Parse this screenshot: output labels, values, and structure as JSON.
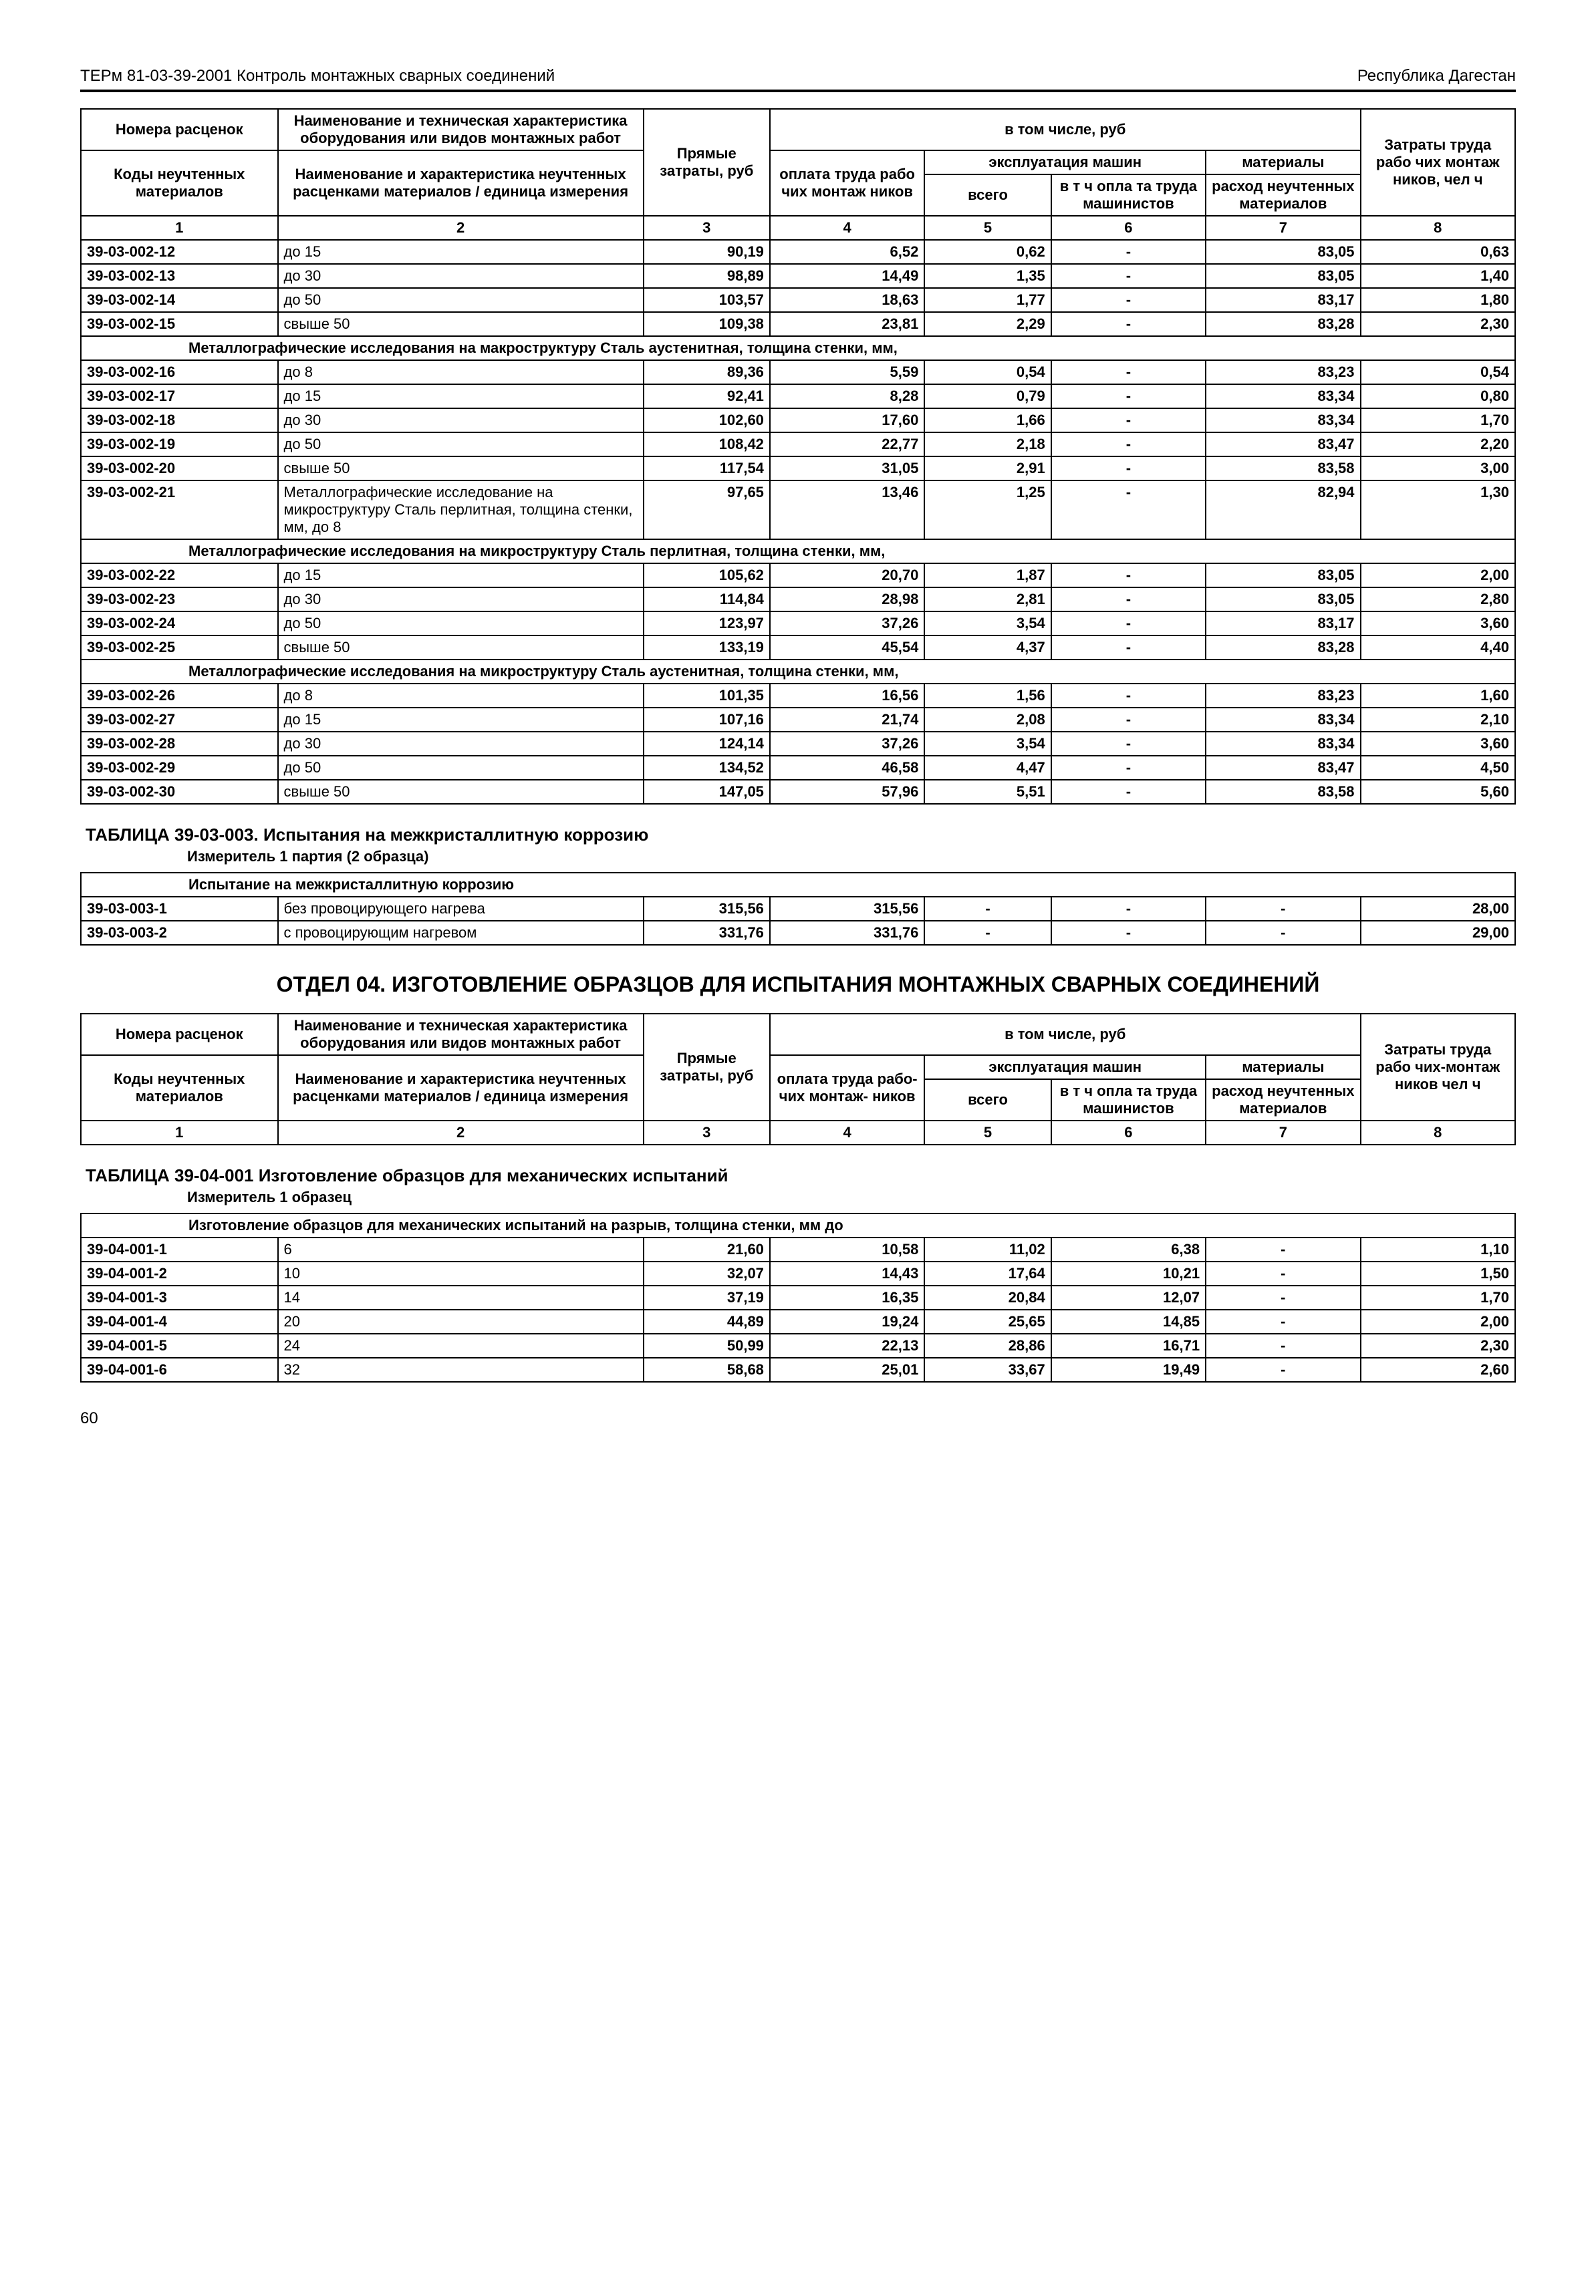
{
  "header": {
    "left": "ТЕРм 81-03-39-2001 Контроль монтажных сварных соединений",
    "right": "Республика Дагестан"
  },
  "main_header": {
    "r1c1": "Номера расценок",
    "r1c2": "Наименование и техническая характеристика оборудования или видов монтажных работ",
    "r1c3": "Прямые затраты, руб",
    "r1c4_span": "в том числе, руб",
    "r1c8": "Затраты труда рабо чих монтаж ников, чел ч",
    "r2c4": "оплата труда рабо чих монтаж ников",
    "r2c5_span": "эксплуатация машин",
    "r2c7": "материалы",
    "r3c1": "Коды неучтенных материалов",
    "r3c2": "Наименование и характеристика неучтенных расценками материалов / единица измерения",
    "r3c5": "всего",
    "r3c6": "в т ч  опла та труда машинистов",
    "r3c7": "расход неучтенных материалов",
    "colnums": [
      "1",
      "2",
      "3",
      "4",
      "5",
      "6",
      "7",
      "8"
    ]
  },
  "rows_a": [
    {
      "code": "39-03-002-12",
      "name": "до 15",
      "v": [
        "90,19",
        "6,52",
        "0,62",
        "-",
        "83,05",
        "0,63"
      ]
    },
    {
      "code": "39-03-002-13",
      "name": "до 30",
      "v": [
        "98,89",
        "14,49",
        "1,35",
        "-",
        "83,05",
        "1,40"
      ]
    },
    {
      "code": "39-03-002-14",
      "name": "до 50",
      "v": [
        "103,57",
        "18,63",
        "1,77",
        "-",
        "83,17",
        "1,80"
      ]
    },
    {
      "code": "39-03-002-15",
      "name": "свыше 50",
      "v": [
        "109,38",
        "23,81",
        "2,29",
        "-",
        "83,28",
        "2,30"
      ]
    }
  ],
  "sec_b": "Металлографические исследования на макроструктуру  Сталь аустенитная, толщина стенки, мм,",
  "rows_b": [
    {
      "code": "39-03-002-16",
      "name": "до 8",
      "v": [
        "89,36",
        "5,59",
        "0,54",
        "-",
        "83,23",
        "0,54"
      ]
    },
    {
      "code": "39-03-002-17",
      "name": "до 15",
      "v": [
        "92,41",
        "8,28",
        "0,79",
        "-",
        "83,34",
        "0,80"
      ]
    },
    {
      "code": "39-03-002-18",
      "name": "до 30",
      "v": [
        "102,60",
        "17,60",
        "1,66",
        "-",
        "83,34",
        "1,70"
      ]
    },
    {
      "code": "39-03-002-19",
      "name": "до 50",
      "v": [
        "108,42",
        "22,77",
        "2,18",
        "-",
        "83,47",
        "2,20"
      ]
    },
    {
      "code": "39-03-002-20",
      "name": "свыше 50",
      "v": [
        "117,54",
        "31,05",
        "2,91",
        "-",
        "83,58",
        "3,00"
      ]
    },
    {
      "code": "39-03-002-21",
      "name": "Металлографические исследова­ние на микроструктуру  Сталь перлитная, толщина стенки, мм, до 8",
      "v": [
        "97,65",
        "13,46",
        "1,25",
        "-",
        "82,94",
        "1,30"
      ]
    }
  ],
  "sec_c": "Металлографические исследования на микроструктуру  Сталь перлитная, толщина стенки, мм,",
  "rows_c": [
    {
      "code": "39-03-002-22",
      "name": "до 15",
      "v": [
        "105,62",
        "20,70",
        "1,87",
        "-",
        "83,05",
        "2,00"
      ]
    },
    {
      "code": "39-03-002-23",
      "name": "до 30",
      "v": [
        "114,84",
        "28,98",
        "2,81",
        "-",
        "83,05",
        "2,80"
      ]
    },
    {
      "code": "39-03-002-24",
      "name": "до 50",
      "v": [
        "123,97",
        "37,26",
        "3,54",
        "-",
        "83,17",
        "3,60"
      ]
    },
    {
      "code": "39-03-002-25",
      "name": "свыше 50",
      "v": [
        "133,19",
        "45,54",
        "4,37",
        "-",
        "83,28",
        "4,40"
      ]
    }
  ],
  "sec_d": "Металлографические исследования на микроструктуру  Сталь аустенитная, толщина стенки, мм,",
  "rows_d": [
    {
      "code": "39-03-002-26",
      "name": "до 8",
      "v": [
        "101,35",
        "16,56",
        "1,56",
        "-",
        "83,23",
        "1,60"
      ]
    },
    {
      "code": "39-03-002-27",
      "name": "до 15",
      "v": [
        "107,16",
        "21,74",
        "2,08",
        "-",
        "83,34",
        "2,10"
      ]
    },
    {
      "code": "39-03-002-28",
      "name": "до 30",
      "v": [
        "124,14",
        "37,26",
        "3,54",
        "-",
        "83,34",
        "3,60"
      ]
    },
    {
      "code": "39-03-002-29",
      "name": "до 50",
      "v": [
        "134,52",
        "46,58",
        "4,47",
        "-",
        "83,47",
        "4,50"
      ]
    },
    {
      "code": "39-03-002-30",
      "name": "свыше 50",
      "v": [
        "147,05",
        "57,96",
        "5,51",
        "-",
        "83,58",
        "5,60"
      ]
    }
  ],
  "table003": {
    "title": "ТАБЛИЦА  39-03-003.  Испытания на межкристаллитную коррозию",
    "measure": "Измеритель  1 партия (2 образца)",
    "section": "Испытание на межкристаллитную коррозию",
    "rows": [
      {
        "code": "39-03-003-1",
        "name": "без провоцирующего нагрева",
        "v": [
          "315,56",
          "315,56",
          "-",
          "-",
          "-",
          "28,00"
        ]
      },
      {
        "code": "39-03-003-2",
        "name": "с провоцирующим нагревом",
        "v": [
          "331,76",
          "331,76",
          "-",
          "-",
          "-",
          "29,00"
        ]
      }
    ]
  },
  "section04_title": "ОТДЕЛ 04. ИЗГОТОВЛЕНИЕ ОБРАЗЦОВ ДЛЯ ИСПЫТАНИЯ МОНТАЖНЫХ СВАРНЫХ СОЕДИНЕНИЙ",
  "header2": {
    "r1c1": "Номера расценок",
    "r1c2": "Наименование и техническая характеристика оборудования или видов монтажных работ",
    "r1c3": "Прямые затраты, руб",
    "r1c4_span": "в том числе, руб",
    "r1c8": "Затраты труда рабо чих-монтаж ников чел  ч",
    "r2c4": "оплата труда рабо- чих монтаж- ников",
    "r2c5_span": "эксплуатация машин",
    "r2c7": "материалы",
    "r3c1": "Коды неучтенных материалов",
    "r3c2": "Наименование и характеристика неучтенных расценками материалов / единица измерения",
    "r3c5": "всего",
    "r3c6": "в т ч  опла та труда машинистов",
    "r3c7": "расход неучтенных материалов"
  },
  "table401": {
    "title": "ТАБЛИЦА  39-04-001   Изготовление образцов для механических испытаний",
    "measure": "Измеритель  1 образец",
    "section": "Изготовление образцов для механических испытаний на разрыв, толщина стенки, мм до",
    "rows": [
      {
        "code": "39-04-001-1",
        "name": "6",
        "v": [
          "21,60",
          "10,58",
          "11,02",
          "6,38",
          "-",
          "1,10"
        ]
      },
      {
        "code": "39-04-001-2",
        "name": "10",
        "v": [
          "32,07",
          "14,43",
          "17,64",
          "10,21",
          "-",
          "1,50"
        ]
      },
      {
        "code": "39-04-001-3",
        "name": "14",
        "v": [
          "37,19",
          "16,35",
          "20,84",
          "12,07",
          "-",
          "1,70"
        ]
      },
      {
        "code": "39-04-001-4",
        "name": "20",
        "v": [
          "44,89",
          "19,24",
          "25,65",
          "14,85",
          "-",
          "2,00"
        ]
      },
      {
        "code": "39-04-001-5",
        "name": "24",
        "v": [
          "50,99",
          "22,13",
          "28,86",
          "16,71",
          "-",
          "2,30"
        ]
      },
      {
        "code": "39-04-001-6",
        "name": "32",
        "v": [
          "58,68",
          "25,01",
          "33,67",
          "19,49",
          "-",
          "2,60"
        ]
      }
    ]
  },
  "page_number": "60"
}
